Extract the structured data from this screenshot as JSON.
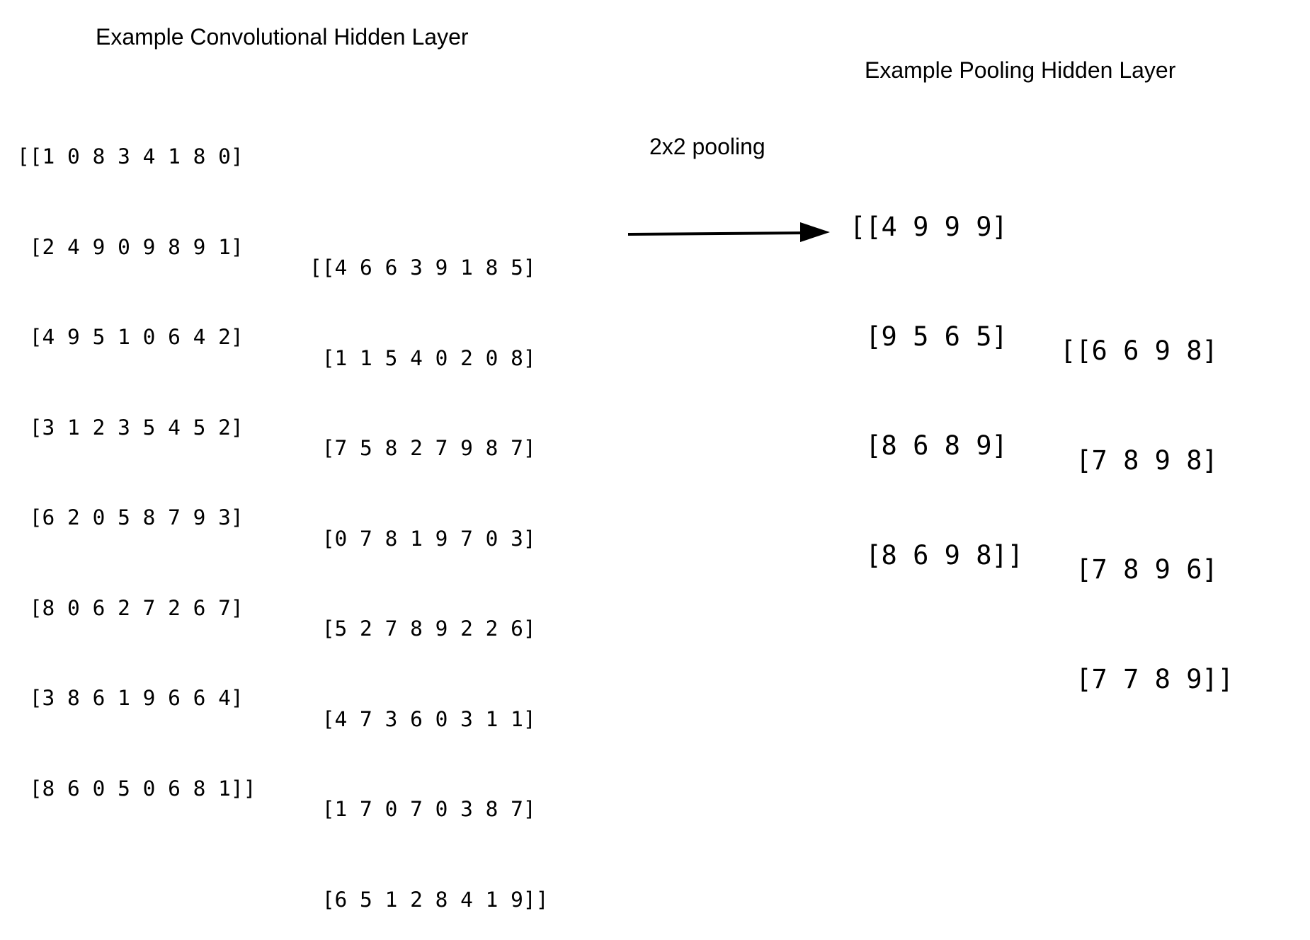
{
  "convolutional": {
    "title": "Example Convolutional Hidden Layer",
    "matrices": [
      {
        "rows": [
          "[[1 0 8 3 4 1 8 0]",
          " [2 4 9 0 9 8 9 1]",
          " [4 9 5 1 0 6 4 2]",
          " [3 1 2 3 5 4 5 2]",
          " [6 2 0 5 8 7 9 3]",
          " [8 0 6 2 7 2 6 7]",
          " [3 8 6 1 9 6 6 4]",
          " [8 6 0 5 0 6 8 1]]"
        ]
      },
      {
        "rows": [
          "[[4 6 6 3 9 1 8 5]",
          " [1 1 5 4 0 2 0 8]",
          " [7 5 8 2 7 9 8 7]",
          " [0 7 8 1 9 7 0 3]",
          " [5 2 7 8 9 2 2 6]",
          " [4 7 3 6 0 3 1 1]",
          " [1 7 0 7 0 3 8 7]",
          " [6 5 1 2 8 4 1 9]]"
        ]
      }
    ]
  },
  "operation": {
    "label": "2x2 pooling",
    "arrow_icon": "right-arrow-icon"
  },
  "pooling": {
    "title": "Example Pooling Hidden Layer",
    "matrices": [
      {
        "rows": [
          "[[4 9 9 9]",
          " [9 5 6 5]",
          " [8 6 8 9]",
          " [8 6 9 8]]"
        ]
      },
      {
        "rows": [
          "[[6 6 9 8]",
          " [7 8 9 8]",
          " [7 8 9 6]",
          " [7 7 8 9]]"
        ]
      }
    ]
  }
}
